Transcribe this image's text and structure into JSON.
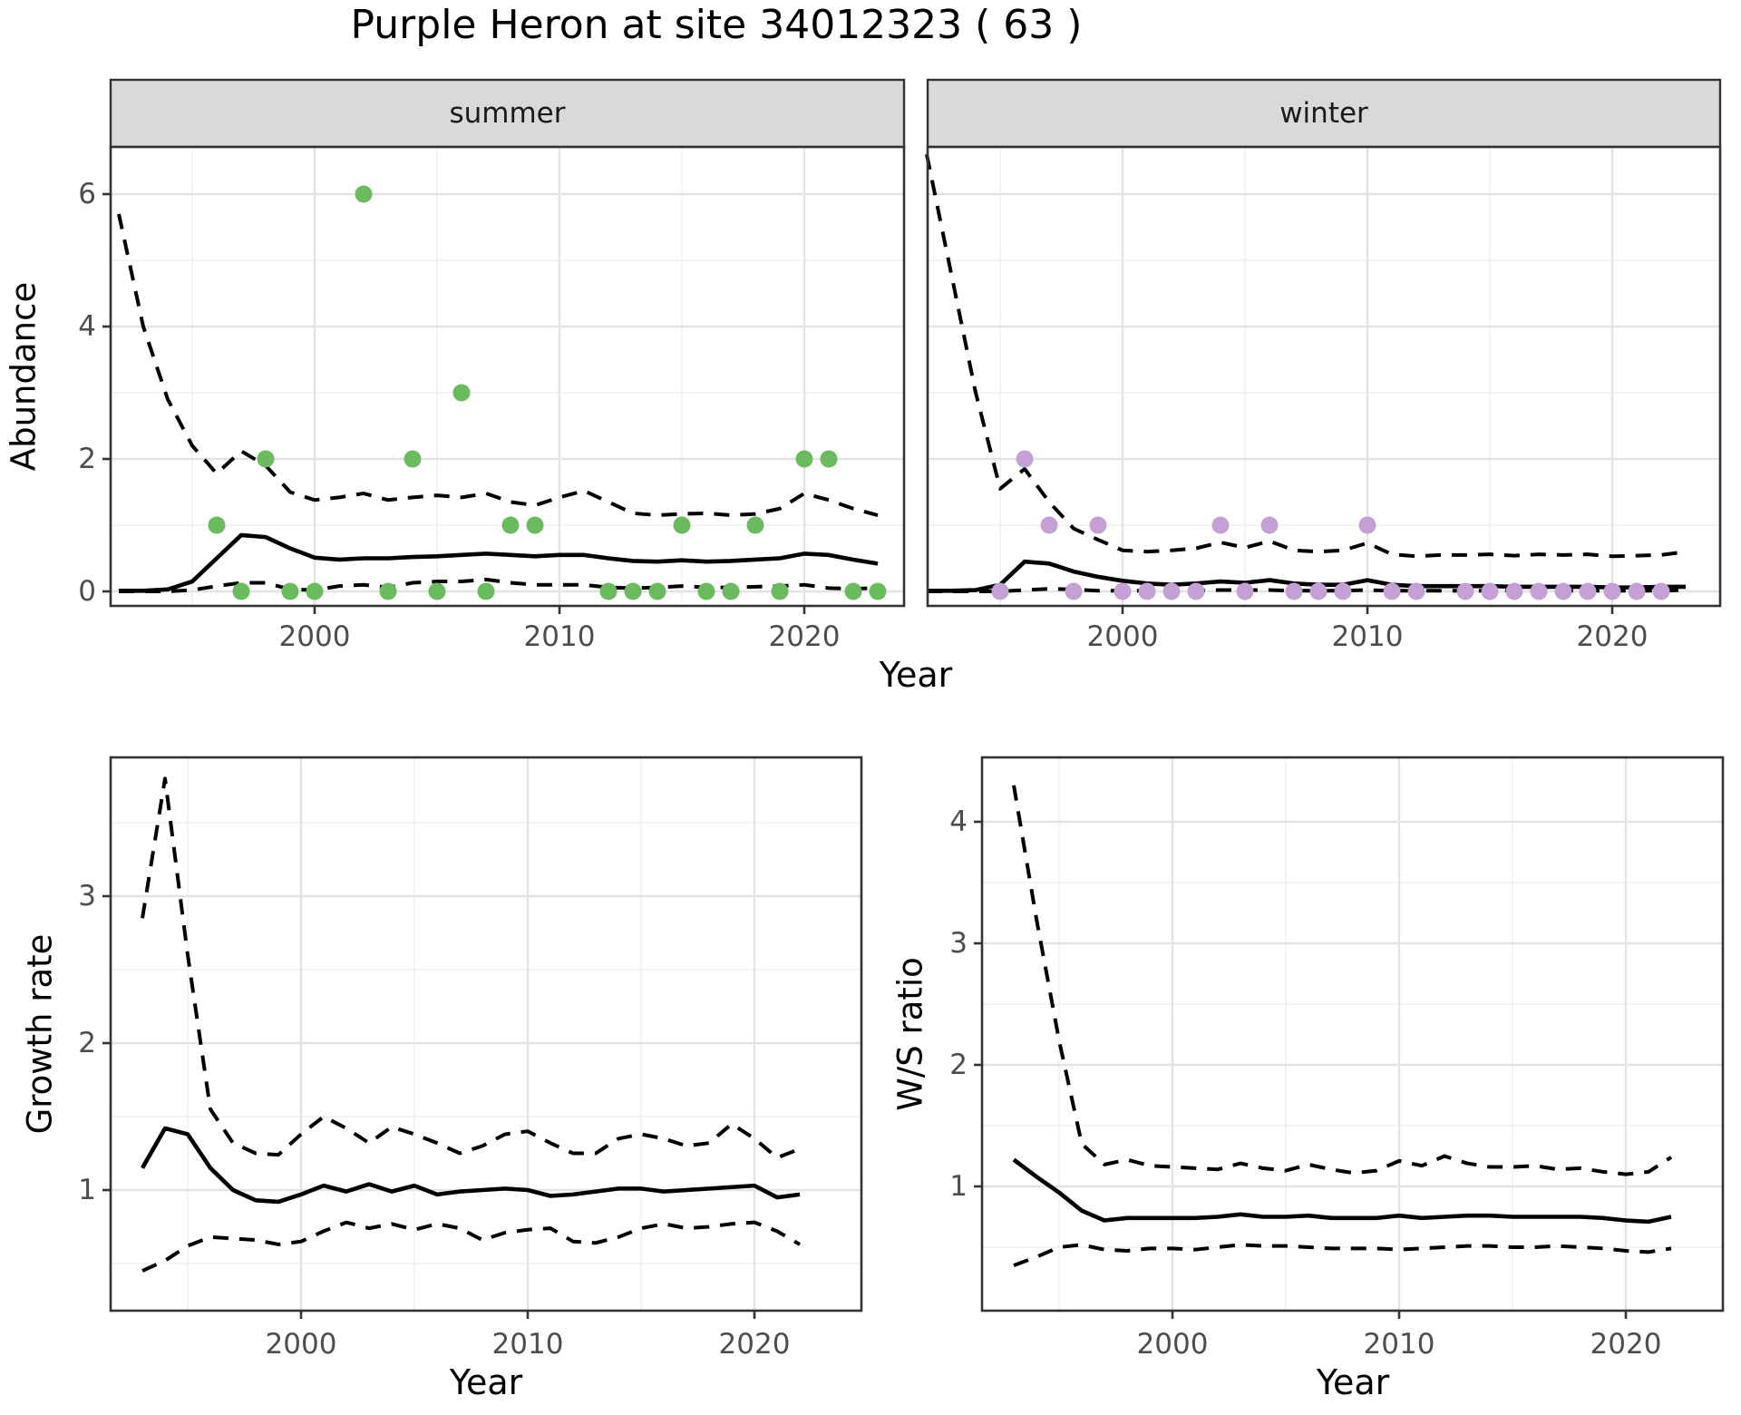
{
  "title": "Purple Heron at site 34012323 ( 63 )",
  "colors": {
    "summer_point": "#6abb5d",
    "winter_point": "#c4a0d6",
    "line": "#000000",
    "strip_bg": "#d9d9d9",
    "panel_border": "#333333",
    "grid_major": "#e3e3e3",
    "grid_minor": "#f0f0f0",
    "axis_text": "#4d4d4d"
  },
  "chart_data": [
    {
      "type": "line",
      "name": "abundance",
      "ylabel": "Abundance",
      "xlabel": "Year",
      "x_ticks": [
        2000,
        2010,
        2020
      ],
      "y_ticks": [
        0,
        2,
        4,
        6
      ],
      "xlim": [
        1992,
        2024
      ],
      "ylim": [
        -0.2,
        6.7
      ],
      "grid": true,
      "legend": "none",
      "facets": [
        {
          "label": "summer",
          "years": [
            1992,
            1993,
            1994,
            1995,
            1996,
            1997,
            1998,
            1999,
            2000,
            2001,
            2002,
            2003,
            2004,
            2005,
            2006,
            2007,
            2008,
            2009,
            2010,
            2011,
            2012,
            2013,
            2014,
            2015,
            2016,
            2017,
            2018,
            2019,
            2020,
            2021,
            2022,
            2023
          ],
          "mean": [
            0.01,
            0.01,
            0.03,
            0.15,
            0.5,
            0.85,
            0.82,
            0.65,
            0.51,
            0.48,
            0.5,
            0.5,
            0.52,
            0.53,
            0.55,
            0.57,
            0.55,
            0.53,
            0.55,
            0.55,
            0.5,
            0.46,
            0.45,
            0.47,
            0.45,
            0.46,
            0.48,
            0.5,
            0.57,
            0.55,
            0.48,
            0.42
          ],
          "upper_ci": [
            5.7,
            4.0,
            2.9,
            2.2,
            1.78,
            2.12,
            1.9,
            1.5,
            1.38,
            1.42,
            1.48,
            1.38,
            1.42,
            1.45,
            1.42,
            1.48,
            1.35,
            1.3,
            1.42,
            1.52,
            1.35,
            1.18,
            1.15,
            1.17,
            1.18,
            1.15,
            1.17,
            1.25,
            1.48,
            1.38,
            1.25,
            1.15
          ],
          "lower_ci": [
            0.0,
            0.0,
            0.0,
            0.02,
            0.08,
            0.13,
            0.13,
            0.03,
            0.02,
            0.08,
            0.1,
            0.06,
            0.13,
            0.15,
            0.15,
            0.18,
            0.13,
            0.1,
            0.1,
            0.1,
            0.06,
            0.05,
            0.06,
            0.08,
            0.06,
            0.06,
            0.07,
            0.08,
            0.1,
            0.05,
            0.04,
            0.05
          ],
          "observations": {
            "years": [
              1996,
              1997,
              1998,
              1999,
              2000,
              2002,
              2003,
              2004,
              2005,
              2006,
              2007,
              2008,
              2009,
              2012,
              2013,
              2014,
              2015,
              2016,
              2017,
              2018,
              2019,
              2020,
              2021,
              2022,
              2023
            ],
            "counts": [
              1,
              0,
              2,
              0,
              0,
              6,
              0,
              2,
              0,
              3,
              0,
              1,
              1,
              0,
              0,
              0,
              1,
              0,
              0,
              1,
              0,
              2,
              2,
              0,
              0
            ]
          }
        },
        {
          "label": "winter",
          "years": [
            1992,
            1993,
            1994,
            1995,
            1996,
            1997,
            1998,
            1999,
            2000,
            2001,
            2002,
            2003,
            2004,
            2005,
            2006,
            2007,
            2008,
            2009,
            2010,
            2011,
            2012,
            2013,
            2014,
            2015,
            2016,
            2017,
            2018,
            2019,
            2020,
            2021,
            2022,
            2023
          ],
          "mean": [
            0.01,
            0.01,
            0.02,
            0.1,
            0.45,
            0.42,
            0.3,
            0.22,
            0.16,
            0.12,
            0.1,
            0.12,
            0.15,
            0.13,
            0.17,
            0.12,
            0.1,
            0.1,
            0.17,
            0.1,
            0.08,
            0.08,
            0.08,
            0.08,
            0.07,
            0.07,
            0.07,
            0.07,
            0.06,
            0.06,
            0.07,
            0.07
          ],
          "upper_ci": [
            6.6,
            4.8,
            3.0,
            1.55,
            1.85,
            1.35,
            0.95,
            0.78,
            0.62,
            0.6,
            0.62,
            0.65,
            0.74,
            0.66,
            0.76,
            0.62,
            0.6,
            0.62,
            0.73,
            0.56,
            0.53,
            0.55,
            0.55,
            0.56,
            0.54,
            0.56,
            0.55,
            0.56,
            0.53,
            0.54,
            0.55,
            0.6
          ],
          "lower_ci": [
            0.0,
            0.0,
            0.0,
            0.0,
            0.02,
            0.04,
            0.03,
            0.01,
            0.01,
            0.01,
            0.01,
            0.01,
            0.02,
            0.02,
            0.02,
            0.01,
            0.01,
            0.01,
            0.02,
            0.01,
            0.01,
            0.01,
            0.01,
            0.01,
            0.01,
            0.01,
            0.01,
            0.01,
            0.01,
            0.01,
            0.01,
            0.02
          ],
          "observations": {
            "years": [
              1995,
              1996,
              1997,
              1998,
              1999,
              2000,
              2001,
              2002,
              2003,
              2004,
              2005,
              2006,
              2007,
              2008,
              2009,
              2010,
              2011,
              2012,
              2014,
              2015,
              2016,
              2017,
              2018,
              2019,
              2020,
              2021,
              2022
            ],
            "counts": [
              0,
              2,
              1,
              0,
              1,
              0,
              0,
              0,
              0,
              1,
              0,
              1,
              0,
              0,
              0,
              1,
              0,
              0,
              0,
              0,
              0,
              0,
              0,
              0,
              0,
              0,
              0
            ]
          }
        }
      ]
    },
    {
      "type": "line",
      "name": "growth_rate",
      "ylabel": "Growth rate",
      "xlabel": "Year",
      "x_ticks": [
        2000,
        2010,
        2020
      ],
      "y_ticks": [
        1,
        2,
        3
      ],
      "xlim": [
        1992,
        2024
      ],
      "ylim": [
        0.35,
        3.95
      ],
      "grid": true,
      "years": [
        1993,
        1994,
        1995,
        1996,
        1997,
        1998,
        1999,
        2000,
        2001,
        2002,
        2003,
        2004,
        2005,
        2006,
        2007,
        2008,
        2009,
        2010,
        2011,
        2012,
        2013,
        2014,
        2015,
        2016,
        2017,
        2018,
        2019,
        2020,
        2021,
        2022
      ],
      "mean": [
        1.15,
        1.42,
        1.38,
        1.15,
        1.0,
        0.93,
        0.92,
        0.97,
        1.03,
        0.99,
        1.04,
        0.99,
        1.03,
        0.97,
        0.99,
        1.0,
        1.01,
        1.0,
        0.96,
        0.97,
        0.99,
        1.01,
        1.01,
        0.99,
        1.0,
        1.01,
        1.02,
        1.03,
        0.95,
        0.97
      ],
      "upper_ci": [
        2.85,
        3.8,
        2.6,
        1.55,
        1.32,
        1.25,
        1.24,
        1.38,
        1.5,
        1.42,
        1.32,
        1.43,
        1.38,
        1.32,
        1.25,
        1.3,
        1.38,
        1.4,
        1.32,
        1.25,
        1.25,
        1.35,
        1.38,
        1.35,
        1.3,
        1.32,
        1.45,
        1.35,
        1.22,
        1.28
      ],
      "lower_ci": [
        0.45,
        0.52,
        0.62,
        0.68,
        0.67,
        0.66,
        0.63,
        0.65,
        0.72,
        0.78,
        0.74,
        0.77,
        0.73,
        0.77,
        0.74,
        0.66,
        0.71,
        0.73,
        0.74,
        0.65,
        0.64,
        0.68,
        0.74,
        0.77,
        0.74,
        0.75,
        0.77,
        0.78,
        0.72,
        0.63
      ]
    },
    {
      "type": "line",
      "name": "ws_ratio",
      "ylabel": "W/S ratio",
      "xlabel": "Year",
      "x_ticks": [
        2000,
        2010,
        2020
      ],
      "y_ticks": [
        1,
        2,
        3,
        4
      ],
      "xlim": [
        1992,
        2024
      ],
      "ylim": [
        0.25,
        4.55
      ],
      "grid": true,
      "years": [
        1993,
        1994,
        1995,
        1996,
        1997,
        1998,
        1999,
        2000,
        2001,
        2002,
        2003,
        2004,
        2005,
        2006,
        2007,
        2008,
        2009,
        2010,
        2011,
        2012,
        2013,
        2014,
        2015,
        2016,
        2017,
        2018,
        2019,
        2020,
        2021,
        2022
      ],
      "mean": [
        1.22,
        1.08,
        0.95,
        0.8,
        0.72,
        0.74,
        0.74,
        0.74,
        0.74,
        0.75,
        0.77,
        0.75,
        0.75,
        0.76,
        0.74,
        0.74,
        0.74,
        0.76,
        0.74,
        0.75,
        0.76,
        0.76,
        0.75,
        0.75,
        0.75,
        0.75,
        0.74,
        0.72,
        0.71,
        0.75
      ],
      "upper_ci": [
        4.3,
        3.2,
        2.2,
        1.35,
        1.18,
        1.22,
        1.17,
        1.16,
        1.15,
        1.14,
        1.19,
        1.15,
        1.13,
        1.18,
        1.14,
        1.11,
        1.13,
        1.21,
        1.17,
        1.25,
        1.19,
        1.16,
        1.16,
        1.17,
        1.14,
        1.15,
        1.12,
        1.1,
        1.12,
        1.24
      ],
      "lower_ci": [
        0.35,
        0.42,
        0.5,
        0.52,
        0.48,
        0.47,
        0.49,
        0.49,
        0.48,
        0.5,
        0.52,
        0.51,
        0.51,
        0.5,
        0.49,
        0.49,
        0.49,
        0.48,
        0.49,
        0.5,
        0.51,
        0.51,
        0.5,
        0.5,
        0.51,
        0.5,
        0.49,
        0.47,
        0.46,
        0.49
      ]
    }
  ]
}
